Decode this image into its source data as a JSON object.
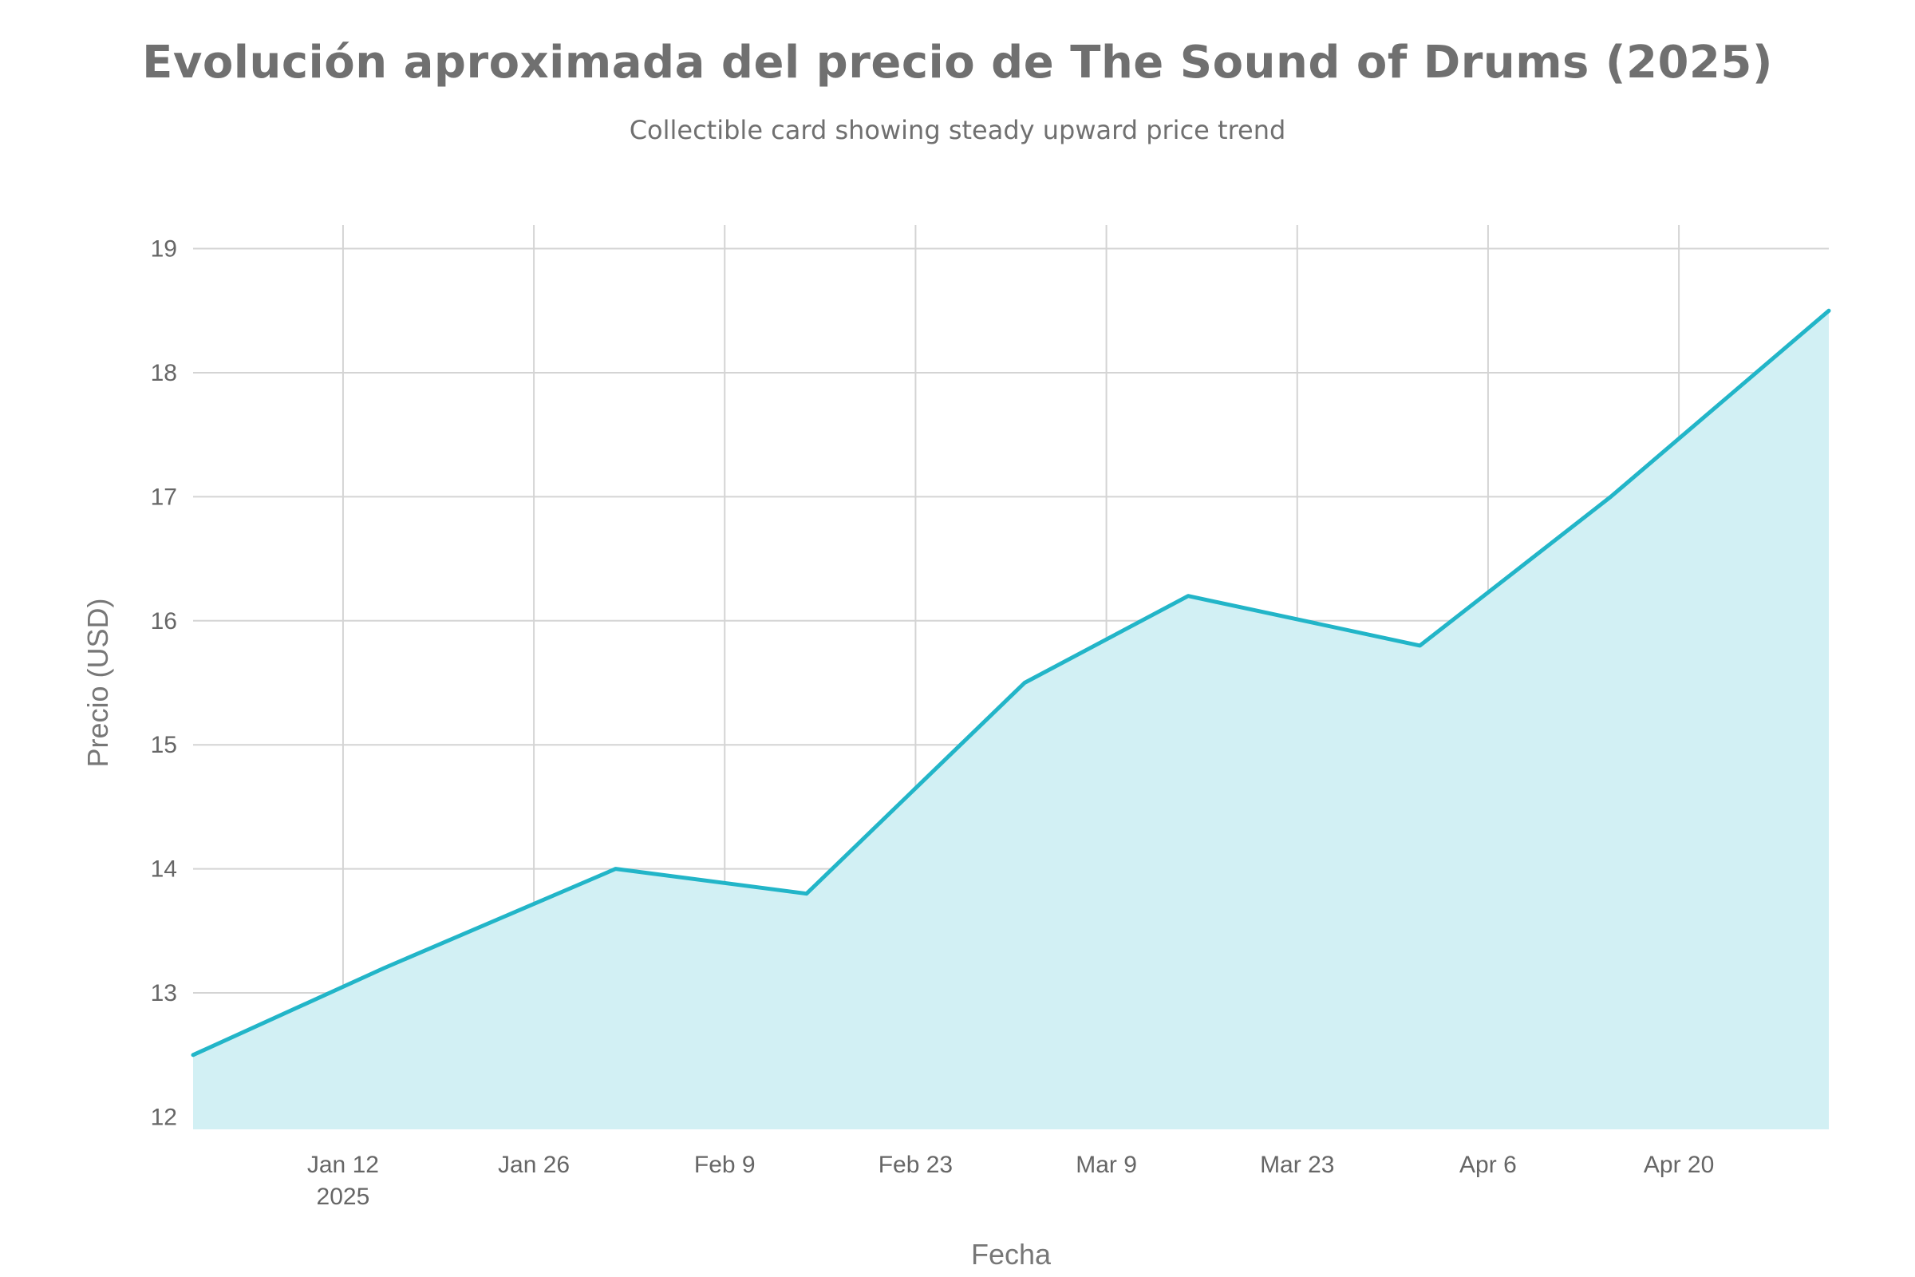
{
  "chart_data": {
    "type": "area",
    "title": "Evolución aproximada del precio de The Sound of Drums (2025)",
    "subtitle": "Collectible card showing steady upward price trend",
    "xlabel": "Fecha",
    "ylabel": "Precio (USD)",
    "x_range": [
      "2025-01-01",
      "2025-05-01"
    ],
    "ylim": [
      11.9,
      19.1
    ],
    "y_ticks": [
      12,
      13,
      14,
      15,
      16,
      17,
      18,
      19
    ],
    "x_ticks": [
      {
        "date": "2025-01-12",
        "label": "Jan 12",
        "sublabel": "2025"
      },
      {
        "date": "2025-01-26",
        "label": "Jan 26",
        "sublabel": ""
      },
      {
        "date": "2025-02-09",
        "label": "Feb 9",
        "sublabel": ""
      },
      {
        "date": "2025-02-23",
        "label": "Feb 23",
        "sublabel": ""
      },
      {
        "date": "2025-03-09",
        "label": "Mar 9",
        "sublabel": ""
      },
      {
        "date": "2025-03-23",
        "label": "Mar 23",
        "sublabel": ""
      },
      {
        "date": "2025-04-06",
        "label": "Apr 6",
        "sublabel": ""
      },
      {
        "date": "2025-04-20",
        "label": "Apr 20",
        "sublabel": ""
      }
    ],
    "grid": true,
    "legend": "none",
    "series": [
      {
        "color": "#22b5c8",
        "fill_color": "#d2f0f4",
        "points": [
          {
            "date": "2025-01-01",
            "value": 12.5
          },
          {
            "date": "2025-01-15",
            "value": 13.2
          },
          {
            "date": "2025-02-01",
            "value": 14.0
          },
          {
            "date": "2025-02-15",
            "value": 13.8
          },
          {
            "date": "2025-03-03",
            "value": 15.5
          },
          {
            "date": "2025-03-15",
            "value": 16.2
          },
          {
            "date": "2025-04-01",
            "value": 15.8
          },
          {
            "date": "2025-04-15",
            "value": 17.0
          },
          {
            "date": "2025-05-01",
            "value": 18.5
          }
        ]
      }
    ]
  }
}
